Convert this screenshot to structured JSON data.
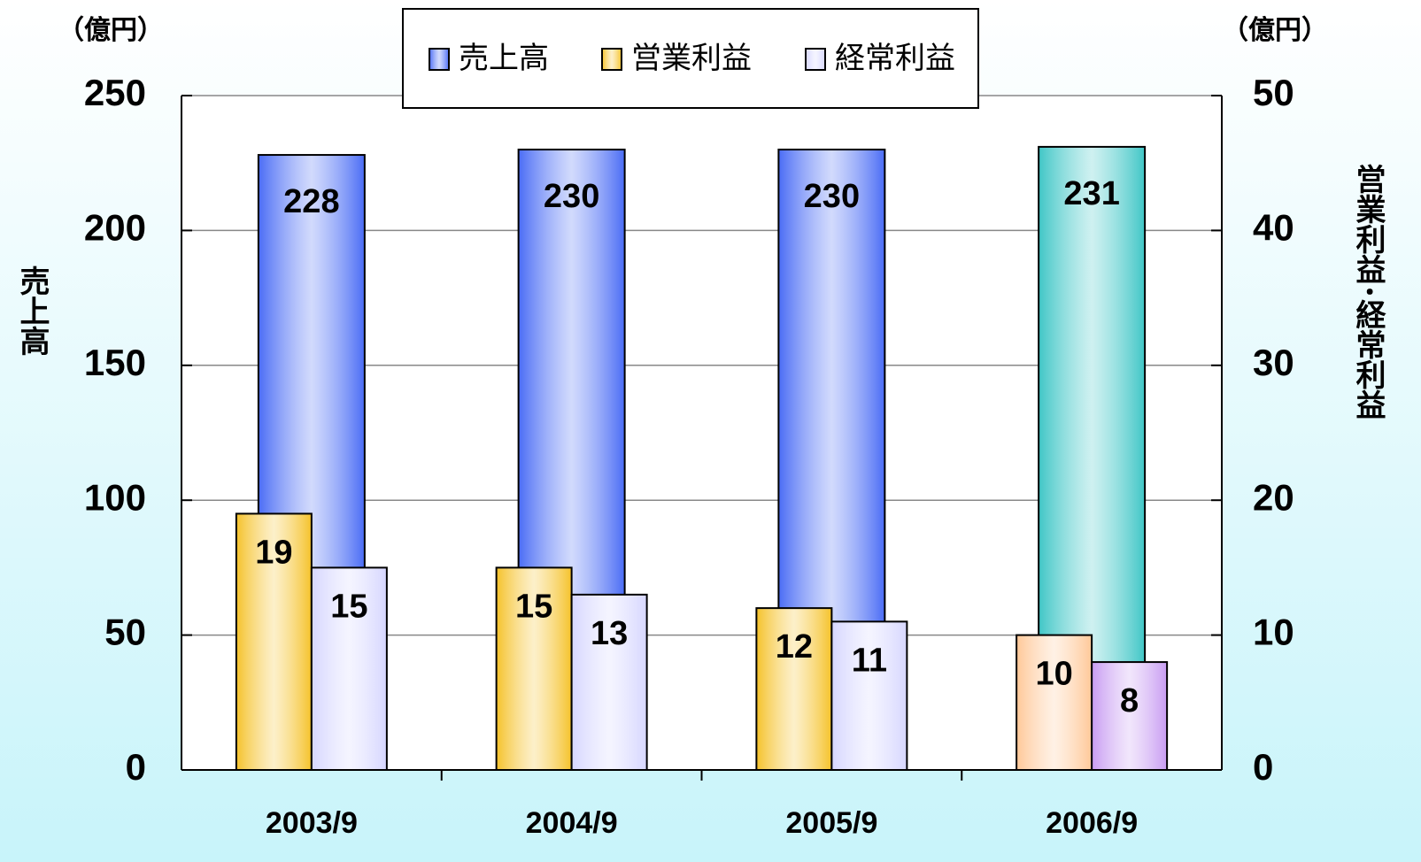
{
  "chart_data": {
    "type": "bar",
    "y_unit": "（億円）",
    "y2_unit": "（億円）",
    "ylabel": "売上高",
    "y2label": "営業利益･経常利益",
    "categories": [
      "2003/9",
      "2004/9",
      "2005/9",
      "2006/9"
    ],
    "series": [
      {
        "name": "売上高",
        "color": "#4a6cf5",
        "colors": [
          "#4a6cf5",
          "#4a6cf5",
          "#4a6cf5",
          "#3fc6c6"
        ],
        "values": [
          228,
          230,
          230,
          231
        ]
      },
      {
        "name": "営業利益",
        "color": "#f5c22a",
        "colors": [
          "#f5c22a",
          "#f5c22a",
          "#f5c22a",
          "#ffc898"
        ],
        "values": [
          19,
          15,
          12,
          10
        ],
        "axis": "y2"
      },
      {
        "name": "経常利益",
        "color": "#d6d6ff",
        "colors": [
          "#d6d6ff",
          "#d6d6ff",
          "#d6d6ff",
          "#c89cf2"
        ],
        "values": [
          15,
          13,
          11,
          8
        ],
        "axis": "y2"
      }
    ],
    "ylim": [
      0,
      250
    ],
    "yticks": [
      0,
      50,
      100,
      150,
      200,
      250
    ],
    "y2lim": [
      0,
      50
    ],
    "y2ticks": [
      0,
      10,
      20,
      30,
      40,
      50
    ],
    "grid": true,
    "legend": "top"
  }
}
